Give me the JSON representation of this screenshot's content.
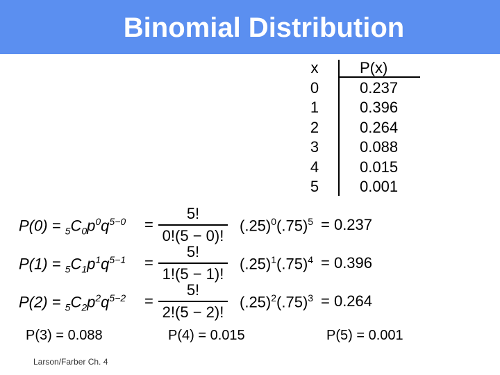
{
  "title": "Binomial Distribution",
  "table": {
    "header_x": "x",
    "header_p": "P(x)",
    "rows": [
      {
        "x": "0",
        "p": "0.237"
      },
      {
        "x": "1",
        "p": "0.396"
      },
      {
        "x": "2",
        "p": "0.264"
      },
      {
        "x": "3",
        "p": "0.088"
      },
      {
        "x": "4",
        "p": "0.015"
      },
      {
        "x": "5",
        "p": "0.001"
      }
    ]
  },
  "equations": [
    {
      "lhs_P": "P(0)",
      "lhs_eq": " = ",
      "lhs_pre": "5",
      "lhs_C": "C",
      "lhs_sub": "0",
      "lhs_p": "p",
      "lhs_psup": "0",
      "lhs_q": "q",
      "lhs_qsup": "5−0",
      "num": "5!",
      "den": "0!(5 − 0)!",
      "rhs": "(.25)",
      "rhs_sup1": "0",
      "rhs_mid": "(.75)",
      "rhs_sup2": "5",
      "result": "= 0.237"
    },
    {
      "lhs_P": "P(1)",
      "lhs_eq": " = ",
      "lhs_pre": "5",
      "lhs_C": "C",
      "lhs_sub": "1",
      "lhs_p": "p",
      "lhs_psup": "1",
      "lhs_q": "q",
      "lhs_qsup": "5−1",
      "num": "5!",
      "den": "1!(5 − 1)!",
      "rhs": "(.25)",
      "rhs_sup1": "1",
      "rhs_mid": "(.75)",
      "rhs_sup2": "4",
      "result": "= 0.396"
    },
    {
      "lhs_P": "P(2)",
      "lhs_eq": " = ",
      "lhs_pre": "5",
      "lhs_C": "C",
      "lhs_sub": "2",
      "lhs_p": "p",
      "lhs_psup": "2",
      "lhs_q": "q",
      "lhs_qsup": "5−2",
      "num": "5!",
      "den": "2!(5 − 2)!",
      "rhs": "(.25)",
      "rhs_sup1": "2",
      "rhs_mid": "(.75)",
      "rhs_sup2": "3",
      "result": "= 0.264"
    }
  ],
  "bottom": {
    "p3": "P(3) = 0.088",
    "p4": "P(4) = 0.015",
    "p5": "P(5) = 0.001"
  },
  "footer": "Larson/Farber Ch. 4"
}
